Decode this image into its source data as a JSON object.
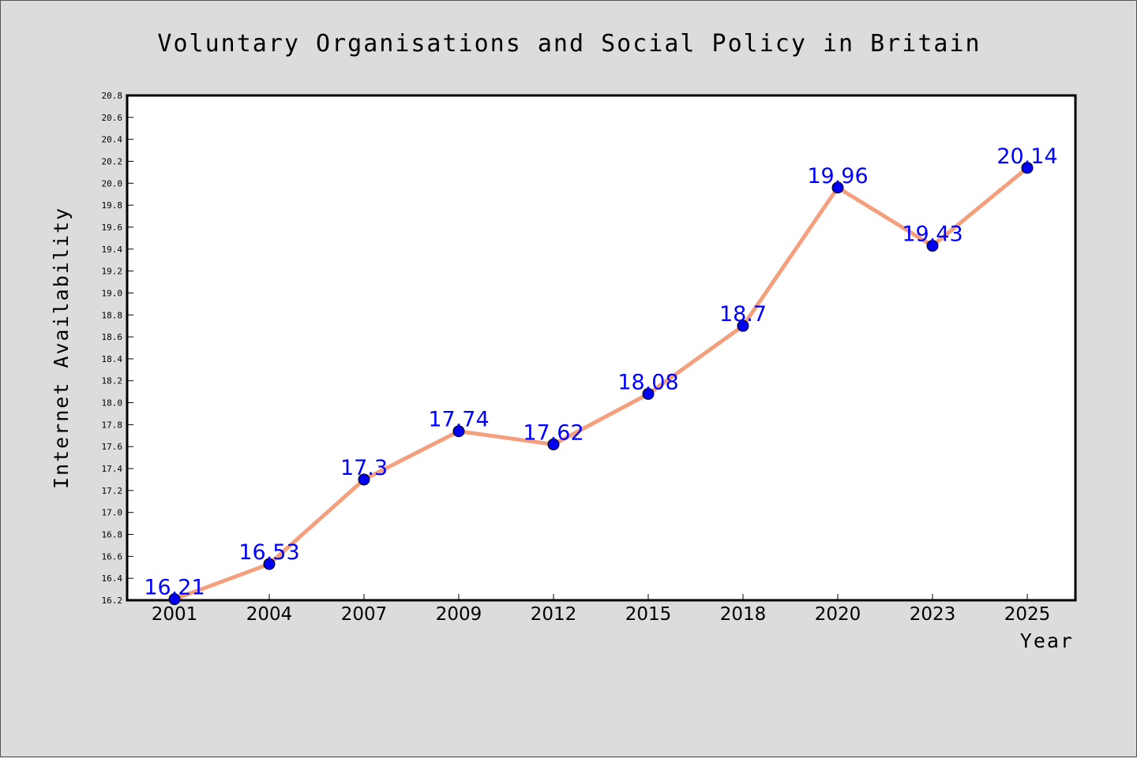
{
  "chart_data": {
    "type": "line",
    "title": "Voluntary Organisations and Social Policy in Britain",
    "xlabel": "Year",
    "ylabel": "Internet Availability",
    "categories": [
      "2001",
      "2004",
      "2007",
      "2009",
      "2012",
      "2015",
      "2018",
      "2020",
      "2023",
      "2025"
    ],
    "series": [
      {
        "values": [
          16.21,
          16.53,
          17.3,
          17.74,
          17.62,
          18.08,
          18.7,
          19.96,
          19.43,
          20.14
        ],
        "labels": [
          "16.21",
          "16.53",
          "17.3",
          "17.74",
          "17.62",
          "18.08",
          "18.7",
          "19.96",
          "19.43",
          "20.14"
        ]
      }
    ],
    "ylim": [
      16.2,
      20.8
    ],
    "yticks": [
      "16.2",
      "16.4",
      "16.6",
      "16.8",
      "17.0",
      "17.2",
      "17.4",
      "17.6",
      "17.8",
      "18.0",
      "18.2",
      "18.4",
      "18.6",
      "18.8",
      "19.0",
      "19.2",
      "19.4",
      "19.6",
      "19.8",
      "20.0",
      "20.2",
      "20.4",
      "20.6",
      "20.8"
    ],
    "grid": false,
    "legend": "none",
    "colors": {
      "line": "#f4a07e",
      "marker": "#0000ee",
      "marker_edge": "#000000",
      "data_label": "#0000ff",
      "plot_background": "#ffffff",
      "figure_background": "#dcdcdc"
    }
  }
}
